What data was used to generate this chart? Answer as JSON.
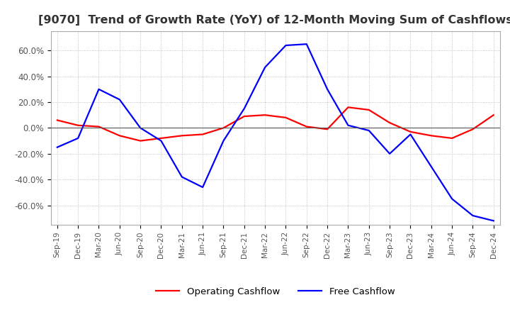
{
  "title": "[9070]  Trend of Growth Rate (YoY) of 12-Month Moving Sum of Cashflows",
  "title_fontsize": 11.5,
  "title_color": "#333333",
  "ylim": [
    -0.75,
    0.75
  ],
  "yticks": [
    -0.6,
    -0.4,
    -0.2,
    0.0,
    0.2,
    0.4,
    0.6
  ],
  "ytick_labels": [
    "-60.0%",
    "-40.0%",
    "-20.0%",
    "0.0%",
    "20.0%",
    "40.0%",
    "60.0%"
  ],
  "background_color": "#ffffff",
  "grid_color": "#aaaaaa",
  "x_labels": [
    "Sep-19",
    "Dec-19",
    "Mar-20",
    "Jun-20",
    "Sep-20",
    "Dec-20",
    "Mar-21",
    "Jun-21",
    "Sep-21",
    "Dec-21",
    "Mar-22",
    "Jun-22",
    "Sep-22",
    "Dec-22",
    "Mar-23",
    "Jun-23",
    "Sep-23",
    "Dec-23",
    "Mar-24",
    "Jun-24",
    "Sep-24",
    "Dec-24"
  ],
  "operating_cashflow": [
    0.06,
    0.02,
    0.01,
    -0.06,
    -0.1,
    -0.08,
    -0.06,
    -0.05,
    0.0,
    0.09,
    0.1,
    0.08,
    0.01,
    -0.01,
    0.16,
    0.14,
    0.04,
    -0.03,
    -0.06,
    -0.08,
    -0.01,
    0.1
  ],
  "free_cashflow": [
    -0.15,
    -0.08,
    0.3,
    0.22,
    0.0,
    -0.1,
    -0.38,
    -0.46,
    -0.1,
    0.15,
    0.47,
    0.64,
    0.65,
    0.3,
    0.02,
    -0.02,
    -0.2,
    -0.05,
    -0.3,
    -0.55,
    -0.68,
    -0.72
  ],
  "operating_color": "#ff0000",
  "free_color": "#0000ff",
  "line_width": 1.6
}
